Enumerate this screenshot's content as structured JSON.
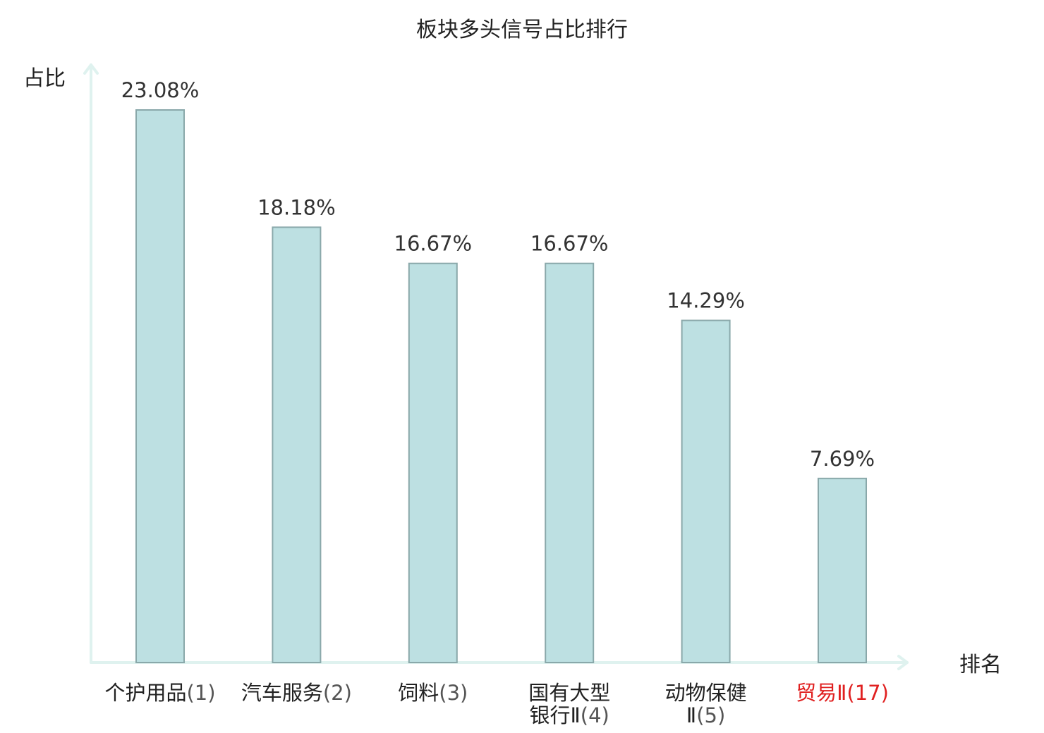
{
  "chart_data": {
    "type": "bar",
    "title": "板块多头信号占比排行",
    "ylabel": "占比",
    "xlabel": "排名",
    "ylim": [
      0,
      25
    ],
    "grid": false,
    "categories": [
      {
        "name_lines": [
          "个护用品"
        ],
        "rank": "(1)",
        "highlight": false
      },
      {
        "name_lines": [
          "汽车服务"
        ],
        "rank": "(2)",
        "highlight": false
      },
      {
        "name_lines": [
          "饲料"
        ],
        "rank": "(3)",
        "highlight": false
      },
      {
        "name_lines": [
          "国有大型",
          "银行Ⅱ"
        ],
        "rank": "(4)",
        "highlight": false
      },
      {
        "name_lines": [
          "动物保健",
          "Ⅱ"
        ],
        "rank": "(5)",
        "highlight": false
      },
      {
        "name_lines": [
          "贸易Ⅱ"
        ],
        "rank": "(17)",
        "highlight": true
      }
    ],
    "values": [
      23.08,
      18.18,
      16.67,
      16.67,
      14.29,
      7.69
    ],
    "value_labels": [
      "23.08%",
      "18.18%",
      "16.67%",
      "16.67%",
      "14.29%",
      "7.69%"
    ],
    "colors": {
      "bar_fill": "#bde0e2",
      "bar_stroke": "#8aa8aa",
      "axis": "#dff2ef",
      "highlight_text": "#e02020"
    }
  }
}
